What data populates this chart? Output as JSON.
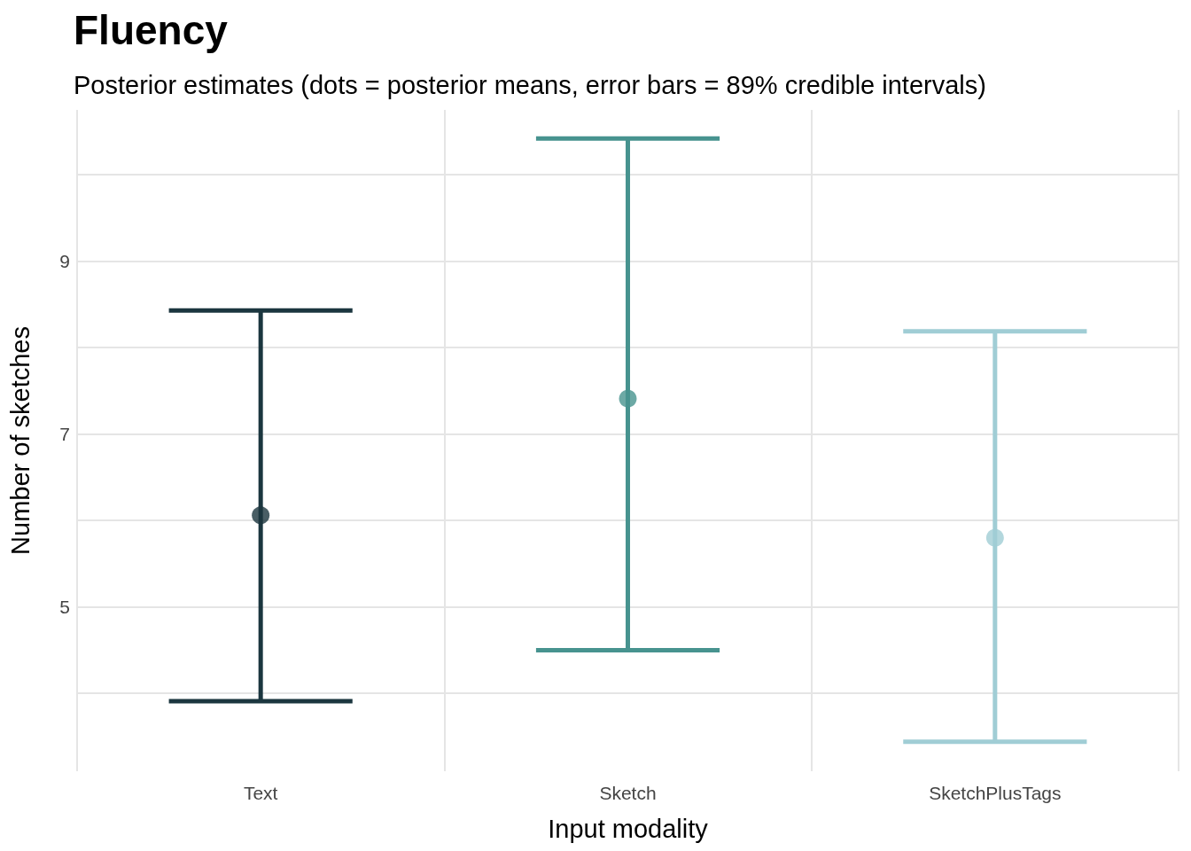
{
  "chart_data": {
    "type": "scatter",
    "title": "Fluency",
    "subtitle": "Posterior estimates (dots = posterior means, error bars = 89% credible intervals)",
    "xlabel": "Input modality",
    "ylabel": "Number of sketches",
    "categories": [
      "Text",
      "Sketch",
      "SketchPlusTags"
    ],
    "values": [
      6.06,
      7.41,
      5.8
    ],
    "errors": [
      [
        3.91,
        8.43
      ],
      [
        4.5,
        10.42
      ],
      [
        3.44,
        8.19
      ]
    ],
    "colors": [
      "#1b363f",
      "#47938f",
      "#a0cdd5"
    ],
    "ylim": [
      3.1,
      10.75
    ],
    "yticks": [
      {
        "value": 4,
        "label": null
      },
      5,
      {
        "value": 6,
        "label": null
      },
      7,
      {
        "value": 8,
        "label": null
      },
      9,
      {
        "value": 10,
        "label": null
      }
    ],
    "grid": true,
    "marker": "circle"
  }
}
